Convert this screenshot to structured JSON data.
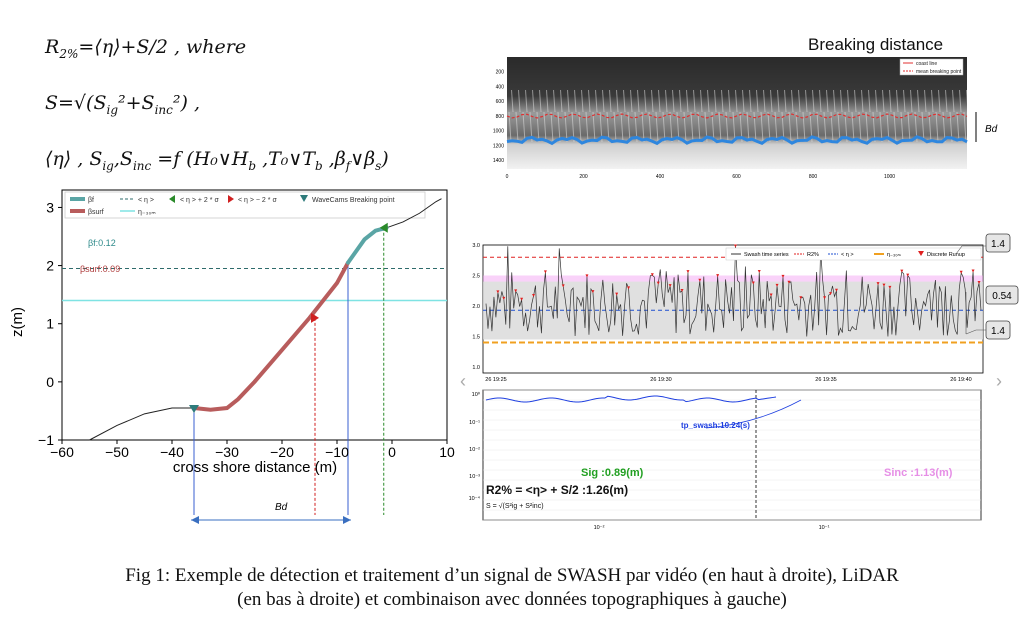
{
  "equations": {
    "r2": {
      "lhs": "R",
      "sub": "2%",
      "rhs": "=⟨η⟩+S/2 , where"
    },
    "s": {
      "text": "S=√(S",
      "ig": "ig",
      "inc": "inc",
      "tail": " ,"
    },
    "params": {
      "text": "⟨η⟩ , S",
      "ig": "ig",
      "inc": "inc",
      "mid": " =f (H₀∨H",
      "b": "b",
      "rest": " ,T₀∨T",
      "b2": "b",
      "beta": " ,β",
      "f": "f",
      "or": "∨β",
      "s": "s",
      "close": ")"
    }
  },
  "left_plot": {
    "legend": [
      "βf",
      "βsurf",
      "< η >",
      "η₋₃₀ₘ",
      "< η > + 2 * σ",
      "< η > − 2 * σ",
      "WaveCams Breaking point"
    ],
    "beta_f": "βf:0.12",
    "beta_surf": "βsurf:0.09",
    "ylabel": "z(m)",
    "xlabel": "cross shore distance (m)",
    "xticks": [
      "−60",
      "−50",
      "−40",
      "−30",
      "−20",
      "−10",
      "0",
      "10"
    ],
    "yticks": [
      "3",
      "2",
      "1",
      "0",
      "−1"
    ],
    "bd_label": "Bd",
    "chart_data": {
      "type": "line",
      "xlim": [
        -60,
        10
      ],
      "ylim": [
        -1,
        3.3
      ],
      "profile_x": [
        -55,
        -50,
        -45,
        -40,
        -36,
        -33,
        -30,
        -28,
        -25,
        -20,
        -15,
        -10,
        -8,
        -5,
        -3,
        -1,
        2,
        5,
        8,
        9
      ],
      "profile_z": [
        -1.0,
        -0.75,
        -0.55,
        -0.45,
        -0.45,
        -0.48,
        -0.45,
        -0.3,
        0.0,
        0.55,
        1.1,
        1.7,
        2.05,
        2.45,
        2.6,
        2.65,
        2.75,
        2.9,
        3.1,
        3.15
      ],
      "mean_eta": 1.95,
      "eta_30m": 1.4,
      "wavecam_break_x": -36,
      "minus2sigma_x": -14,
      "plus2sigma_x": -1.5,
      "blue_line_x": -8
    }
  },
  "top_right": {
    "title": "Breaking distance",
    "legend": [
      "coast line",
      "mean breaking point"
    ],
    "yticks": [
      "200",
      "400",
      "600",
      "800",
      "1000",
      "1200",
      "1400"
    ],
    "xticks": [
      "0",
      "200",
      "400",
      "600",
      "800",
      "1000"
    ],
    "bd_label": "Bd"
  },
  "mid_right": {
    "legend": [
      "Swash time series",
      "R2%",
      "< η >",
      "η₋₃₀ₘ",
      "Discrete Runup"
    ],
    "yticks": [
      "3.0",
      "2.5",
      "2.0",
      "1.5",
      "1.0"
    ],
    "xticks": [
      "26 19:25",
      "26 19:30",
      "26 19:35",
      "26 19:40"
    ],
    "box_top": "1.4",
    "box_mid": "0.54",
    "box_bot": "1.4",
    "chart_data": {
      "type": "line",
      "ylim": [
        0.9,
        3.0
      ],
      "r2": 2.8,
      "mean_eta": 1.93,
      "eta_30m": 1.4
    }
  },
  "spectrum": {
    "tp_label": "tp_swash:10.24(s)",
    "sig_label": "Sig :0.89(m)",
    "sinc_label": "Sinc :1.13(m)",
    "r2_label": "R2% = <η> + S/2 :1.26(m)",
    "s_def": "S = √(S²ig + S²inc)",
    "yticks": [
      "10⁰",
      "10⁻¹",
      "10⁻²",
      "10⁻³",
      "10⁻⁴"
    ],
    "xticks": [
      "10⁻²",
      "10⁻¹"
    ],
    "chart_data": {
      "type": "line",
      "x_scale": "log",
      "y_scale": "log",
      "tp_swash": 10.24,
      "Sig": 0.89,
      "Sinc": 1.13,
      "R2": 1.26
    }
  },
  "caption_line1": "Fig 1: Exemple de détection et traitement d’un signal de SWASH par vidéo (en haut à droite), LiDAR",
  "caption_line2": "(en bas à droite) et combinaison avec données topographiques à gauche)",
  "colors": {
    "profile": "#b85c5c",
    "beta_f": "#5aa5a5",
    "mean": "#2e6b6b",
    "cyan": "#7fe3e3",
    "blue": "#1e4fd0",
    "red": "#e02020",
    "orange": "#f0a020",
    "pink": "#f3a6f3"
  }
}
